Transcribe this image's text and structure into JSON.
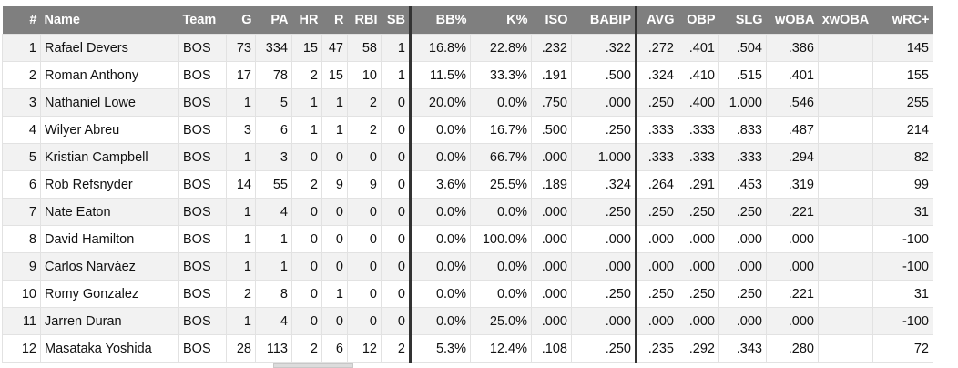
{
  "headers": [
    "#",
    "Name",
    "Team",
    "G",
    "PA",
    "HR",
    "R",
    "RBI",
    "SB",
    "BB%",
    "K%",
    "ISO",
    "BABIP",
    "AVG",
    "OBP",
    "SLG",
    "wOBA",
    "xwOBA",
    "wRC+"
  ],
  "rows": [
    [
      "1",
      "Rafael Devers",
      "BOS",
      "73",
      "334",
      "15",
      "47",
      "58",
      "1",
      "16.8%",
      "22.8%",
      ".232",
      ".322",
      ".272",
      ".401",
      ".504",
      ".386",
      "",
      "145"
    ],
    [
      "2",
      "Roman Anthony",
      "BOS",
      "17",
      "78",
      "2",
      "15",
      "10",
      "1",
      "11.5%",
      "33.3%",
      ".191",
      ".500",
      ".324",
      ".410",
      ".515",
      ".401",
      "",
      "155"
    ],
    [
      "3",
      "Nathaniel Lowe",
      "BOS",
      "1",
      "5",
      "1",
      "1",
      "2",
      "0",
      "20.0%",
      "0.0%",
      ".750",
      ".000",
      ".250",
      ".400",
      "1.000",
      ".546",
      "",
      "255"
    ],
    [
      "4",
      "Wilyer Abreu",
      "BOS",
      "3",
      "6",
      "1",
      "1",
      "2",
      "0",
      "0.0%",
      "16.7%",
      ".500",
      ".250",
      ".333",
      ".333",
      ".833",
      ".487",
      "",
      "214"
    ],
    [
      "5",
      "Kristian Campbell",
      "BOS",
      "1",
      "3",
      "0",
      "0",
      "0",
      "0",
      "0.0%",
      "66.7%",
      ".000",
      "1.000",
      ".333",
      ".333",
      ".333",
      ".294",
      "",
      "82"
    ],
    [
      "6",
      "Rob Refsnyder",
      "BOS",
      "14",
      "55",
      "2",
      "9",
      "9",
      "0",
      "3.6%",
      "25.5%",
      ".189",
      ".324",
      ".264",
      ".291",
      ".453",
      ".319",
      "",
      "99"
    ],
    [
      "7",
      "Nate Eaton",
      "BOS",
      "1",
      "4",
      "0",
      "0",
      "0",
      "0",
      "0.0%",
      "0.0%",
      ".000",
      ".250",
      ".250",
      ".250",
      ".250",
      ".221",
      "",
      "31"
    ],
    [
      "8",
      "David Hamilton",
      "BOS",
      "1",
      "1",
      "0",
      "0",
      "0",
      "0",
      "0.0%",
      "100.0%",
      ".000",
      ".000",
      ".000",
      ".000",
      ".000",
      ".000",
      "",
      "-100"
    ],
    [
      "9",
      "Carlos Narváez",
      "BOS",
      "1",
      "1",
      "0",
      "0",
      "0",
      "0",
      "0.0%",
      "0.0%",
      ".000",
      ".000",
      ".000",
      ".000",
      ".000",
      ".000",
      "",
      "-100"
    ],
    [
      "10",
      "Romy Gonzalez",
      "BOS",
      "2",
      "8",
      "0",
      "1",
      "0",
      "0",
      "0.0%",
      "0.0%",
      ".000",
      ".250",
      ".250",
      ".250",
      ".250",
      ".221",
      "",
      "31"
    ],
    [
      "11",
      "Jarren Duran",
      "BOS",
      "1",
      "4",
      "0",
      "0",
      "0",
      "0",
      "0.0%",
      "25.0%",
      ".000",
      ".000",
      ".000",
      ".000",
      ".000",
      ".000",
      "",
      "-100"
    ],
    [
      "12",
      "Masataka Yoshida",
      "BOS",
      "28",
      "113",
      "2",
      "6",
      "12",
      "2",
      "5.3%",
      "12.4%",
      ".108",
      ".250",
      ".235",
      ".292",
      ".343",
      ".280",
      "",
      "72"
    ]
  ]
}
